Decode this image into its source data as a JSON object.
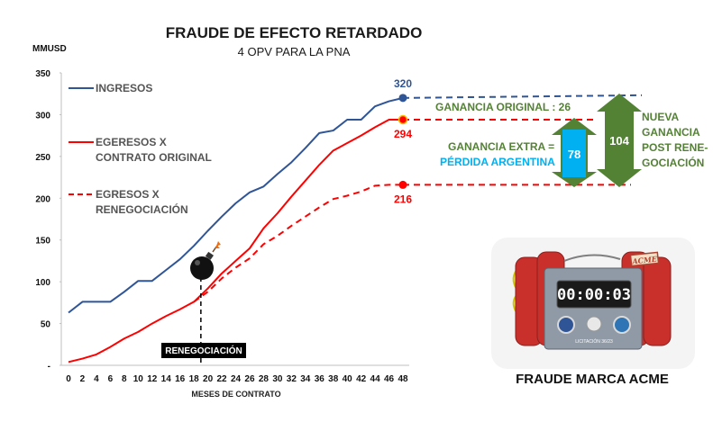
{
  "chart_data": {
    "type": "line",
    "title": "FRAUDE DE EFECTO RETARDADO",
    "subtitle": "4 OPV PARA LA PNA",
    "ylabel": "MMUSD",
    "xlabel": "MESES DE CONTRATO",
    "ylim": [
      0,
      350
    ],
    "xlim": [
      0,
      48
    ],
    "yticks": [
      0,
      50,
      100,
      150,
      200,
      250,
      300,
      350
    ],
    "ytick_labels": [
      "-",
      "50",
      "100",
      "150",
      "200",
      "250",
      "300",
      "350"
    ],
    "xticks": [
      0,
      2,
      4,
      6,
      8,
      10,
      12,
      14,
      16,
      18,
      20,
      22,
      24,
      26,
      28,
      30,
      32,
      34,
      36,
      38,
      40,
      42,
      44,
      46,
      48
    ],
    "grid": false,
    "legend_position": "upper-left",
    "series": [
      {
        "name": "INGRESOS",
        "color": "#2f5597",
        "style": "solid",
        "x": [
          0,
          2,
          4,
          6,
          8,
          10,
          12,
          14,
          16,
          18,
          20,
          22,
          24,
          26,
          28,
          30,
          32,
          34,
          36,
          38,
          40,
          42,
          44,
          46,
          48
        ],
        "y": [
          63,
          76,
          76,
          76,
          88,
          101,
          101,
          114,
          127,
          143,
          161,
          178,
          194,
          207,
          214,
          229,
          243,
          260,
          278,
          281,
          294,
          294,
          310,
          316,
          320
        ]
      },
      {
        "name": "EGERESOS X CONTRATO ORIGINAL",
        "color": "#ff0000",
        "style": "solid",
        "x": [
          0,
          2,
          4,
          6,
          8,
          10,
          12,
          14,
          16,
          18,
          20,
          22,
          24,
          26,
          28,
          30,
          32,
          34,
          36,
          38,
          40,
          42,
          44,
          46,
          48
        ],
        "y": [
          4,
          8,
          13,
          22,
          32,
          40,
          50,
          59,
          67,
          76,
          92,
          110,
          125,
          140,
          164,
          182,
          202,
          221,
          240,
          257,
          266,
          275,
          285,
          294,
          294
        ]
      },
      {
        "name": "EGRESOS X RENEGOCIACIÓN",
        "color": "#ff0000",
        "style": "dashed",
        "x": [
          18,
          20,
          22,
          24,
          26,
          28,
          30,
          32,
          34,
          36,
          38,
          40,
          42,
          44,
          46,
          48
        ],
        "y": [
          76,
          88,
          104,
          117,
          128,
          145,
          155,
          167,
          178,
          189,
          199,
          203,
          208,
          215,
          216,
          216
        ]
      }
    ],
    "legend": [
      {
        "line1": "INGRESOS",
        "line2": ""
      },
      {
        "line1": "EGERESOS X",
        "line2": "CONTRATO ORIGINAL"
      },
      {
        "line1": "EGRESOS X",
        "line2": "RENEGOCIACIÓN"
      }
    ],
    "end_labels": {
      "ingresos": "320",
      "original": "294",
      "renegociacion": "216"
    },
    "renegociacion_marker": {
      "x": 19,
      "label": "RENEGOCIACIÓN"
    },
    "annotations": {
      "ganancia_original": "GANANCIA ORIGINAL :   26",
      "ganancia_extra_line1": "GANANCIA EXTRA =",
      "ganancia_extra_line2": "PÉRDIDA ARGENTINA",
      "extra_value": "78",
      "nueva_value": "104",
      "nueva_lines": [
        "NUEVA",
        "GANANCIA",
        "POST RENE-",
        "GOCIACIÓN"
      ]
    },
    "colors": {
      "blue": "#2f5597",
      "red": "#ff0000",
      "green": "#548235",
      "cyan": "#00b0f0",
      "dark_green": "#548235"
    }
  },
  "acme": {
    "timer": "00:00:03",
    "badge": "ACME",
    "caption": "LICITACIÓN 36/23",
    "title": "FRAUDE MARCA ACME"
  }
}
